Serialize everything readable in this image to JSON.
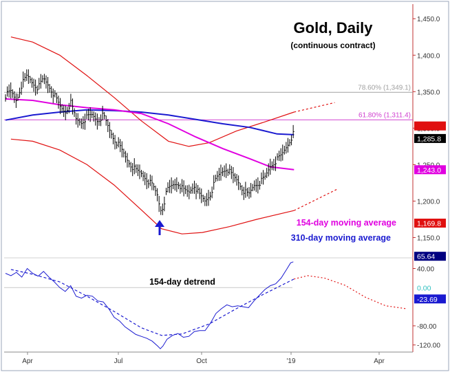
{
  "chart_data": [
    {
      "type": "line",
      "title": "Gold, Daily",
      "subtitle": "(continuous contract)",
      "x_ticks": [
        "Apr",
        "Jul",
        "Oct",
        "'19",
        "Apr"
      ],
      "y_ticks": [
        1150,
        1200,
        1250,
        1300,
        1350,
        1400,
        1450
      ],
      "y_tick_labels": [
        "1,150.0",
        "1,200.0",
        "1,250.0",
        "1,300.0",
        "1,350.0",
        "1,400.0",
        "1,450.0"
      ],
      "ylim": [
        1125,
        1470
      ],
      "price": [
        [
          0,
          1345
        ],
        [
          8,
          1350
        ],
        [
          16,
          1338
        ],
        [
          24,
          1360
        ],
        [
          32,
          1372
        ],
        [
          40,
          1362
        ],
        [
          48,
          1355
        ],
        [
          56,
          1368
        ],
        [
          64,
          1358
        ],
        [
          72,
          1345
        ],
        [
          80,
          1330
        ],
        [
          88,
          1322
        ],
        [
          96,
          1335
        ],
        [
          104,
          1312
        ],
        [
          112,
          1308
        ],
        [
          120,
          1315
        ],
        [
          128,
          1318
        ],
        [
          136,
          1310
        ],
        [
          144,
          1318
        ],
        [
          152,
          1300
        ],
        [
          160,
          1285
        ],
        [
          168,
          1275
        ],
        [
          176,
          1262
        ],
        [
          184,
          1250
        ],
        [
          192,
          1242
        ],
        [
          200,
          1238
        ],
        [
          208,
          1230
        ],
        [
          216,
          1222
        ],
        [
          224,
          1208
        ],
        [
          228,
          1188
        ],
        [
          232,
          1192
        ],
        [
          238,
          1215
        ],
        [
          246,
          1222
        ],
        [
          254,
          1225
        ],
        [
          262,
          1215
        ],
        [
          270,
          1212
        ],
        [
          278,
          1222
        ],
        [
          286,
          1208
        ],
        [
          294,
          1200
        ],
        [
          302,
          1210
        ],
        [
          310,
          1230
        ],
        [
          318,
          1240
        ],
        [
          326,
          1245
        ],
        [
          334,
          1235
        ],
        [
          342,
          1228
        ],
        [
          350,
          1215
        ],
        [
          358,
          1208
        ],
        [
          366,
          1222
        ],
        [
          374,
          1225
        ],
        [
          382,
          1232
        ],
        [
          390,
          1248
        ],
        [
          398,
          1255
        ],
        [
          406,
          1262
        ],
        [
          414,
          1275
        ],
        [
          420,
          1285
        ],
        [
          424,
          1292
        ]
      ],
      "fib_levels": [
        {
          "label": "78.60% (1,349.1)",
          "value": 1349.1,
          "color": "#a0a0a0"
        },
        {
          "label": "61.80% (1,311.4)",
          "value": 1311.4,
          "color": "#d040d0"
        }
      ],
      "ma154": [
        [
          0,
          1340
        ],
        [
          40,
          1338
        ],
        [
          80,
          1332
        ],
        [
          120,
          1328
        ],
        [
          160,
          1325
        ],
        [
          200,
          1320
        ],
        [
          240,
          1306
        ],
        [
          280,
          1288
        ],
        [
          320,
          1272
        ],
        [
          360,
          1258
        ],
        [
          390,
          1247
        ],
        [
          425,
          1243
        ]
      ],
      "ma310": [
        [
          0,
          1311
        ],
        [
          40,
          1318
        ],
        [
          80,
          1322
        ],
        [
          120,
          1325
        ],
        [
          160,
          1324
        ],
        [
          200,
          1322
        ],
        [
          240,
          1318
        ],
        [
          280,
          1312
        ],
        [
          320,
          1306
        ],
        [
          360,
          1301
        ],
        [
          400,
          1292
        ],
        [
          425,
          1291
        ]
      ],
      "band_upper": [
        [
          8,
          1425
        ],
        [
          40,
          1418
        ],
        [
          80,
          1400
        ],
        [
          120,
          1372
        ],
        [
          160,
          1342
        ],
        [
          200,
          1310
        ],
        [
          240,
          1282
        ],
        [
          270,
          1275
        ],
        [
          300,
          1280
        ],
        [
          340,
          1296
        ],
        [
          380,
          1308
        ],
        [
          425,
          1322
        ]
      ],
      "band_upper_projection": [
        [
          425,
          1322
        ],
        [
          485,
          1335
        ]
      ],
      "band_lower": [
        [
          8,
          1285
        ],
        [
          40,
          1282
        ],
        [
          80,
          1270
        ],
        [
          120,
          1250
        ],
        [
          160,
          1222
        ],
        [
          200,
          1188
        ],
        [
          230,
          1162
        ],
        [
          260,
          1155
        ],
        [
          290,
          1157
        ],
        [
          330,
          1165
        ],
        [
          370,
          1175
        ],
        [
          425,
          1187
        ]
      ],
      "band_lower_projection": [
        [
          425,
          1187
        ],
        [
          490,
          1217
        ]
      ],
      "price_flags": [
        {
          "label": "1,303.0",
          "value": 1303.0,
          "color": "#e01010",
          "text_color": "#e01010"
        },
        {
          "label": "1,285.8",
          "value": 1285.8,
          "color": "#000000",
          "text_color": "#ffffff"
        },
        {
          "label": "1,243.0",
          "value": 1243.0,
          "color": "#e000e0",
          "text_color": "#ffffff"
        },
        {
          "label": "1,169.8",
          "value": 1169.8,
          "color": "#e01010",
          "text_color": "#ffffff"
        }
      ],
      "legend": [
        {
          "label": "154-day moving average",
          "color": "#e000e0"
        },
        {
          "label": "310-day moving average",
          "color": "#1a1ad0"
        }
      ],
      "legend_position": "bottom-right",
      "annotation": "low-arrow"
    },
    {
      "type": "line",
      "title": "154-day detrend",
      "y_ticks": [
        -120,
        -80,
        40
      ],
      "y_tick_labels": [
        "-120.00",
        "-80.00",
        "40.00"
      ],
      "ylim": [
        -132,
        58
      ],
      "zero_label": "0.00",
      "detrend": [
        [
          0,
          30
        ],
        [
          8,
          25
        ],
        [
          16,
          32
        ],
        [
          24,
          22
        ],
        [
          32,
          40
        ],
        [
          40,
          30
        ],
        [
          48,
          24
        ],
        [
          56,
          34
        ],
        [
          64,
          22
        ],
        [
          72,
          12
        ],
        [
          80,
          0
        ],
        [
          88,
          -8
        ],
        [
          96,
          4
        ],
        [
          104,
          -18
        ],
        [
          112,
          -22
        ],
        [
          120,
          -16
        ],
        [
          128,
          -18
        ],
        [
          136,
          -28
        ],
        [
          144,
          -30
        ],
        [
          152,
          -44
        ],
        [
          160,
          -62
        ],
        [
          168,
          -70
        ],
        [
          176,
          -82
        ],
        [
          184,
          -90
        ],
        [
          192,
          -98
        ],
        [
          200,
          -102
        ],
        [
          208,
          -106
        ],
        [
          216,
          -112
        ],
        [
          224,
          -122
        ],
        [
          228,
          -128
        ],
        [
          232,
          -122
        ],
        [
          238,
          -108
        ],
        [
          246,
          -100
        ],
        [
          254,
          -96
        ],
        [
          262,
          -104
        ],
        [
          270,
          -102
        ],
        [
          278,
          -92
        ],
        [
          286,
          -90
        ],
        [
          294,
          -90
        ],
        [
          302,
          -74
        ],
        [
          310,
          -54
        ],
        [
          318,
          -44
        ],
        [
          326,
          -36
        ],
        [
          334,
          -40
        ],
        [
          342,
          -38
        ],
        [
          350,
          -40
        ],
        [
          358,
          -42
        ],
        [
          366,
          -28
        ],
        [
          374,
          -16
        ],
        [
          382,
          -4
        ],
        [
          390,
          4
        ],
        [
          398,
          8
        ],
        [
          406,
          20
        ],
        [
          414,
          38
        ],
        [
          420,
          52
        ],
        [
          424,
          54
        ]
      ],
      "cycle": [
        [
          8,
          38
        ],
        [
          40,
          28
        ],
        [
          80,
          12
        ],
        [
          120,
          -18
        ],
        [
          160,
          -50
        ],
        [
          200,
          -84
        ],
        [
          230,
          -100
        ],
        [
          260,
          -97
        ],
        [
          300,
          -76
        ],
        [
          340,
          -44
        ],
        [
          380,
          -14
        ],
        [
          425,
          18
        ]
      ],
      "cycle_projection": [
        [
          425,
          18
        ],
        [
          445,
          25
        ],
        [
          470,
          20
        ],
        [
          500,
          5
        ],
        [
          530,
          -20
        ],
        [
          560,
          -38
        ],
        [
          590,
          -44
        ]
      ],
      "price_flags": [
        {
          "label": "65.64",
          "value": 65.64,
          "color": "#000080",
          "text_color": "#ffffff"
        },
        {
          "label": "0.00",
          "value": 0,
          "color": "#ffffff",
          "text_color": "#30c0c0"
        },
        {
          "label": "-23.69",
          "value": -23.69,
          "color": "#1a1ad0",
          "text_color": "#ffffff"
        }
      ]
    }
  ]
}
